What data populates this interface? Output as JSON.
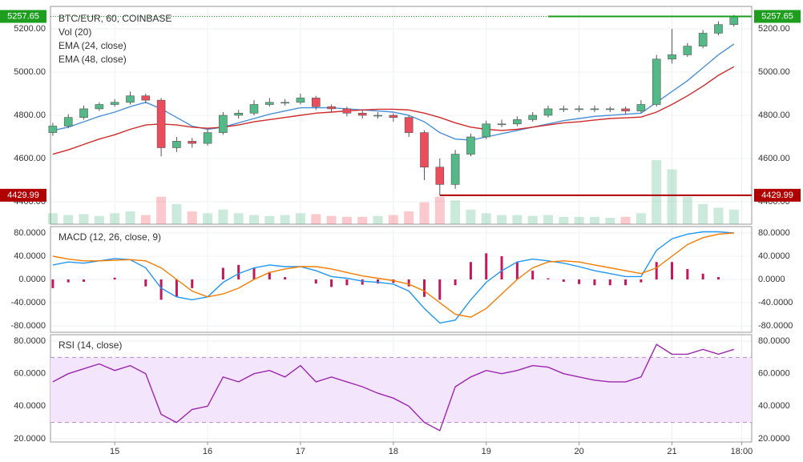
{
  "chart_data": [
    {
      "type": "candlestick",
      "title": "BTC/EUR, 60, COINBASE",
      "x": [
        8,
        12,
        16,
        20,
        24,
        28,
        32,
        36,
        40,
        44,
        48,
        52,
        56,
        60,
        64,
        68,
        72,
        76,
        80,
        84,
        88,
        92,
        96,
        100,
        104,
        108,
        112,
        116,
        120,
        124,
        128,
        132,
        136,
        140,
        144,
        148,
        152,
        156,
        160,
        164,
        168,
        172,
        176,
        180,
        184
      ],
      "open": [
        4720,
        4750,
        4790,
        4830,
        4850,
        4860,
        4890,
        4870,
        4650,
        4680,
        4670,
        4720,
        4800,
        4810,
        4850,
        4860,
        4860,
        4880,
        4840,
        4830,
        4810,
        4800,
        4800,
        4790,
        4720,
        4560,
        4480,
        4620,
        4700,
        4760,
        4760,
        4780,
        4800,
        4830,
        4830,
        4830,
        4830,
        4830,
        4820,
        4850,
        5060,
        5080,
        5120,
        5180,
        5220
      ],
      "high": [
        4765,
        4805,
        4845,
        4860,
        4875,
        4910,
        4900,
        4880,
        4700,
        4695,
        4735,
        4815,
        4825,
        4870,
        4880,
        4875,
        4900,
        4890,
        4850,
        4840,
        4825,
        4815,
        4810,
        4800,
        4730,
        4600,
        4640,
        4715,
        4775,
        4780,
        4795,
        4815,
        4845,
        4845,
        4845,
        4845,
        4840,
        4840,
        4870,
        5080,
        5200,
        5135,
        5195,
        5235,
        5265
      ],
      "low": [
        4705,
        4740,
        4780,
        4820,
        4840,
        4850,
        4855,
        4610,
        4630,
        4650,
        4660,
        4710,
        4785,
        4800,
        4840,
        4845,
        4850,
        4825,
        4815,
        4795,
        4785,
        4785,
        4770,
        4700,
        4500,
        4430,
        4460,
        4610,
        4690,
        4745,
        4750,
        4770,
        4790,
        4815,
        4815,
        4815,
        4815,
        4805,
        4810,
        4840,
        5040,
        5070,
        5110,
        5170,
        5210
      ],
      "close": [
        4750,
        4790,
        4830,
        4850,
        4860,
        4890,
        4870,
        4650,
        4680,
        4670,
        4720,
        4800,
        4810,
        4850,
        4860,
        4860,
        4880,
        4840,
        4830,
        4810,
        4800,
        4800,
        4790,
        4720,
        4560,
        4480,
        4620,
        4700,
        4760,
        4760,
        4780,
        4800,
        4830,
        4830,
        4830,
        4830,
        4830,
        4820,
        4850,
        5060,
        5080,
        5120,
        5180,
        5220,
        5257.65
      ],
      "up_color": "#53b987",
      "down_color": "#eb4d5c",
      "volume": {
        "name": "Vol (20)",
        "values": [
          12,
          10,
          11,
          9,
          12,
          14,
          10,
          30,
          22,
          14,
          12,
          16,
          12,
          10,
          9,
          10,
          12,
          11,
          9,
          8,
          8,
          9,
          10,
          14,
          24,
          30,
          26,
          16,
          12,
          10,
          10,
          9,
          10,
          8,
          8,
          8,
          7,
          8,
          12,
          70,
          60,
          30,
          22,
          18,
          16
        ]
      },
      "series": [
        {
          "name": "EMA (24, close)",
          "color": "#4a90d9",
          "values": [
            4730,
            4745,
            4770,
            4795,
            4815,
            4840,
            4860,
            4830,
            4790,
            4750,
            4735,
            4745,
            4765,
            4785,
            4805,
            4820,
            4835,
            4835,
            4835,
            4830,
            4825,
            4820,
            4815,
            4800,
            4770,
            4720,
            4690,
            4685,
            4700,
            4715,
            4730,
            4745,
            4760,
            4775,
            4785,
            4795,
            4800,
            4805,
            4810,
            4860,
            4910,
            4960,
            5020,
            5080,
            5130
          ]
        },
        {
          "name": "EMA (48, close)",
          "color": "#d02a2a",
          "values": [
            4620,
            4640,
            4665,
            4690,
            4710,
            4735,
            4755,
            4760,
            4755,
            4745,
            4740,
            4745,
            4755,
            4770,
            4780,
            4790,
            4800,
            4810,
            4815,
            4820,
            4825,
            4828,
            4828,
            4825,
            4810,
            4790,
            4765,
            4745,
            4735,
            4730,
            4735,
            4745,
            4755,
            4765,
            4770,
            4778,
            4785,
            4788,
            4792,
            4815,
            4850,
            4890,
            4935,
            4985,
            5025
          ]
        }
      ],
      "price_lines": [
        {
          "value": 5257.65,
          "color": "#1e9e1e",
          "from": 136
        },
        {
          "value": 4429.99,
          "color": "#b00000",
          "from": 108
        }
      ],
      "xlim": [
        7.4,
        188.6
      ],
      "ylim": [
        4296,
        5304
      ],
      "yticks": [
        {
          "value": 4400,
          "label": "4400.00"
        },
        {
          "value": 4600,
          "label": "4600.00"
        },
        {
          "value": 4800,
          "label": "4800.00"
        },
        {
          "value": 5000,
          "label": "5000.00"
        },
        {
          "value": 5200,
          "label": "5200.00"
        }
      ]
    },
    {
      "type": "line",
      "title": "MACD (12, 26, close, 9)",
      "x": [
        8,
        12,
        16,
        20,
        24,
        28,
        32,
        36,
        40,
        44,
        48,
        52,
        56,
        60,
        64,
        68,
        72,
        76,
        80,
        84,
        88,
        92,
        96,
        100,
        104,
        108,
        112,
        116,
        120,
        124,
        128,
        132,
        136,
        140,
        144,
        148,
        152,
        156,
        160,
        164,
        168,
        172,
        176,
        180,
        184
      ],
      "bars": {
        "color": "#c2185b",
        "values": [
          -15,
          -5,
          -4,
          0,
          3,
          0,
          -12,
          -35,
          -30,
          -15,
          0,
          20,
          25,
          20,
          13,
          4,
          0,
          -7,
          -13,
          -10,
          -9,
          -7,
          -6,
          -12,
          -30,
          -35,
          -10,
          30,
          45,
          40,
          30,
          15,
          2,
          -4,
          -8,
          -10,
          -10,
          -10,
          -5,
          30,
          30,
          18,
          10,
          4,
          0
        ]
      },
      "series": [
        {
          "color": "#2196f3",
          "values": [
            25,
            30,
            28,
            32,
            36,
            34,
            20,
            -15,
            -30,
            -35,
            -30,
            -5,
            10,
            20,
            25,
            22,
            22,
            15,
            5,
            2,
            -3,
            -5,
            -8,
            -20,
            -50,
            -75,
            -70,
            -35,
            -5,
            15,
            30,
            35,
            32,
            28,
            22,
            15,
            10,
            5,
            5,
            50,
            70,
            78,
            82,
            82,
            80
          ]
        },
        {
          "color": "#f57c00",
          "values": [
            40,
            35,
            32,
            32,
            33,
            34,
            32,
            20,
            0,
            -20,
            -30,
            -25,
            -15,
            0,
            12,
            18,
            22,
            22,
            18,
            12,
            6,
            2,
            -2,
            -8,
            -20,
            -40,
            -60,
            -65,
            -50,
            -25,
            0,
            20,
            30,
            32,
            30,
            25,
            20,
            15,
            10,
            20,
            40,
            60,
            72,
            78,
            80
          ]
        }
      ],
      "xlim": [
        7.4,
        188.6
      ],
      "ylim": [
        -91,
        91
      ],
      "yticks": [
        {
          "value": -80,
          "label": "-80.0000"
        },
        {
          "value": -40,
          "label": "-40.0000"
        },
        {
          "value": 0,
          "label": "0.0000"
        },
        {
          "value": 40,
          "label": "40.0000"
        },
        {
          "value": 80,
          "label": "80.0000"
        }
      ]
    },
    {
      "type": "line",
      "title": "RSI (14, close)",
      "x": [
        8,
        12,
        16,
        20,
        24,
        28,
        32,
        36,
        40,
        44,
        48,
        52,
        56,
        60,
        64,
        68,
        72,
        76,
        80,
        84,
        88,
        92,
        96,
        100,
        104,
        108,
        112,
        116,
        120,
        124,
        128,
        132,
        136,
        140,
        144,
        148,
        152,
        156,
        160,
        164,
        168,
        172,
        176,
        180,
        184
      ],
      "series": [
        {
          "color": "#9c27b0",
          "values": [
            55,
            60,
            63,
            66,
            62,
            65,
            60,
            35,
            30,
            38,
            40,
            58,
            55,
            60,
            62,
            58,
            65,
            55,
            58,
            55,
            52,
            48,
            45,
            40,
            30,
            25,
            52,
            58,
            62,
            60,
            62,
            65,
            64,
            60,
            58,
            56,
            55,
            55,
            58,
            78,
            72,
            72,
            75,
            72,
            75
          ]
        }
      ],
      "band": [
        30,
        70
      ],
      "band_color": "#f3e5fb",
      "xlim": [
        7.4,
        188.6
      ],
      "ylim": [
        18,
        84
      ],
      "yticks": [
        {
          "value": 20,
          "label": "20.0000"
        },
        {
          "value": 40,
          "label": "40.0000"
        },
        {
          "value": 60,
          "label": "60.0000"
        },
        {
          "value": 80,
          "label": "80.0000"
        }
      ],
      "xticks": [
        {
          "value": 24,
          "label": "15"
        },
        {
          "value": 48,
          "label": "16"
        },
        {
          "value": 72,
          "label": "17"
        },
        {
          "value": 96,
          "label": "18"
        },
        {
          "value": 120,
          "label": "19"
        },
        {
          "value": 144,
          "label": "20"
        },
        {
          "value": 168,
          "label": "21"
        },
        {
          "value": 186,
          "label": "18:00"
        }
      ]
    }
  ]
}
